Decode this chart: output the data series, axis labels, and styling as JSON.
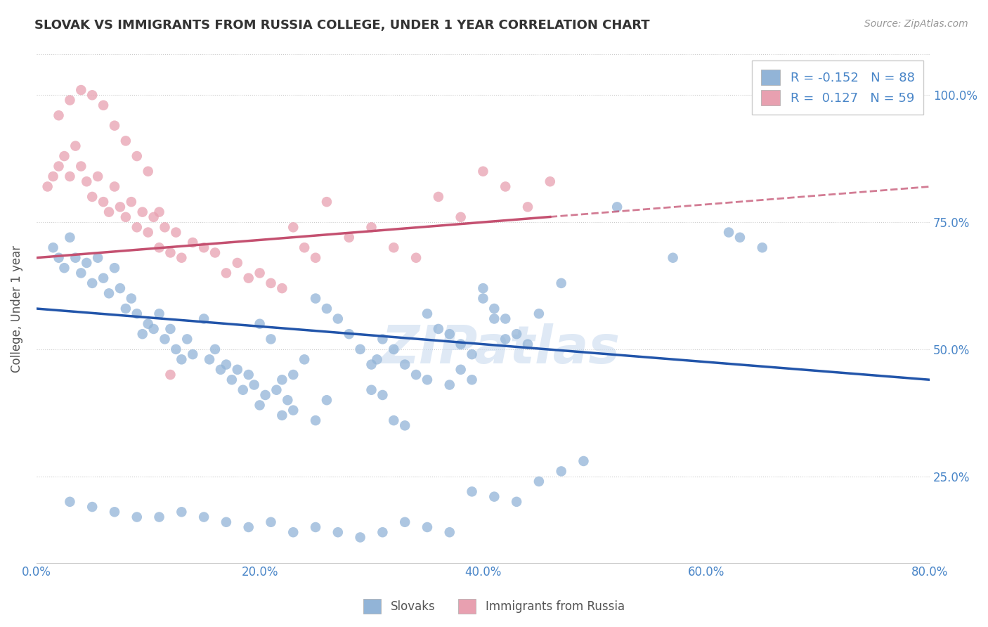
{
  "title": "SLOVAK VS IMMIGRANTS FROM RUSSIA COLLEGE, UNDER 1 YEAR CORRELATION CHART",
  "source_text": "Source: ZipAtlas.com",
  "ylabel": "College, Under 1 year",
  "x_tick_labels": [
    "0.0%",
    "20.0%",
    "40.0%",
    "60.0%",
    "80.0%"
  ],
  "x_tick_vals": [
    0.0,
    20.0,
    40.0,
    60.0,
    80.0
  ],
  "y_tick_labels": [
    "25.0%",
    "50.0%",
    "75.0%",
    "100.0%"
  ],
  "y_tick_vals": [
    25.0,
    50.0,
    75.0,
    100.0
  ],
  "xlim": [
    0.0,
    80.0
  ],
  "ylim": [
    8.0,
    108.0
  ],
  "legend_label1": "Slovaks",
  "legend_label2": "Immigrants from Russia",
  "r1": -0.152,
  "n1": 88,
  "r2": 0.127,
  "n2": 59,
  "color_blue": "#92b4d7",
  "color_pink": "#e8a0b0",
  "color_blue_line": "#2255aa",
  "color_pink_line": "#c45070",
  "watermark": "ZIPatlas",
  "blue_line_x0": 0.0,
  "blue_line_y0": 58.0,
  "blue_line_x1": 80.0,
  "blue_line_y1": 44.0,
  "pink_line_x0": 0.0,
  "pink_line_y0": 68.0,
  "pink_line_x1": 80.0,
  "pink_line_y1": 82.0,
  "pink_solid_xmax": 46.0,
  "blue_scatter_x": [
    1.5,
    2.0,
    2.5,
    3.0,
    3.5,
    4.0,
    4.5,
    5.0,
    5.5,
    6.0,
    6.5,
    7.0,
    7.5,
    8.0,
    8.5,
    9.0,
    9.5,
    10.0,
    10.5,
    11.0,
    11.5,
    12.0,
    12.5,
    13.0,
    13.5,
    14.0,
    15.0,
    15.5,
    16.0,
    16.5,
    17.0,
    17.5,
    18.0,
    18.5,
    19.0,
    19.5,
    20.0,
    20.5,
    21.0,
    21.5,
    22.0,
    22.5,
    23.0,
    24.0,
    25.0,
    26.0,
    27.0,
    28.0,
    29.0,
    30.0,
    30.5,
    31.0,
    32.0,
    33.0,
    34.0,
    35.0,
    36.0,
    37.0,
    38.0,
    39.0,
    40.0,
    41.0,
    42.0,
    43.0,
    44.0,
    45.0,
    47.0,
    52.0,
    57.0,
    62.0,
    63.0,
    65.0,
    37.0,
    38.0,
    39.0,
    40.0,
    41.0,
    42.0,
    20.0,
    22.0,
    23.0,
    25.0,
    26.0,
    30.0,
    31.0,
    32.0,
    33.0,
    35.0
  ],
  "blue_scatter_y": [
    70,
    68,
    66,
    72,
    68,
    65,
    67,
    63,
    68,
    64,
    61,
    66,
    62,
    58,
    60,
    57,
    53,
    55,
    54,
    57,
    52,
    54,
    50,
    48,
    52,
    49,
    56,
    48,
    50,
    46,
    47,
    44,
    46,
    42,
    45,
    43,
    55,
    41,
    52,
    42,
    44,
    40,
    45,
    48,
    60,
    58,
    56,
    53,
    50,
    47,
    48,
    52,
    50,
    47,
    45,
    57,
    54,
    53,
    51,
    49,
    62,
    58,
    56,
    53,
    51,
    57,
    63,
    78,
    68,
    73,
    72,
    70,
    43,
    46,
    44,
    60,
    56,
    52,
    39,
    37,
    38,
    36,
    40,
    42,
    41,
    36,
    35,
    44
  ],
  "blue_scatter_x2": [
    3.0,
    5.0,
    7.0,
    9.0,
    11.0,
    13.0,
    15.0,
    17.0,
    19.0,
    21.0,
    23.0,
    25.0,
    27.0,
    29.0,
    31.0,
    33.0,
    35.0,
    37.0,
    39.0,
    41.0,
    43.0,
    45.0,
    47.0,
    49.0
  ],
  "blue_scatter_y2": [
    20,
    19,
    18,
    17,
    17,
    18,
    17,
    16,
    15,
    16,
    14,
    15,
    14,
    13,
    14,
    16,
    15,
    14,
    22,
    21,
    20,
    24,
    26,
    28
  ],
  "pink_scatter_x": [
    1.0,
    1.5,
    2.0,
    2.5,
    3.0,
    3.5,
    4.0,
    4.5,
    5.0,
    5.5,
    6.0,
    6.5,
    7.0,
    7.5,
    8.0,
    8.5,
    9.0,
    9.5,
    10.0,
    10.5,
    11.0,
    11.5,
    12.0,
    12.5,
    13.0,
    14.0,
    15.0,
    16.0,
    17.0,
    18.0,
    19.0,
    20.0,
    21.0,
    22.0,
    23.0,
    24.0,
    25.0,
    26.0,
    28.0,
    30.0,
    32.0,
    34.0,
    36.0,
    38.0,
    40.0,
    42.0,
    44.0,
    46.0,
    2.0,
    3.0,
    4.0,
    5.0,
    6.0,
    7.0,
    8.0,
    9.0,
    10.0,
    11.0,
    12.0
  ],
  "pink_scatter_y": [
    82,
    84,
    86,
    88,
    84,
    90,
    86,
    83,
    80,
    84,
    79,
    77,
    82,
    78,
    76,
    79,
    74,
    77,
    73,
    76,
    70,
    74,
    69,
    73,
    68,
    71,
    70,
    69,
    65,
    67,
    64,
    65,
    63,
    62,
    74,
    70,
    68,
    79,
    72,
    74,
    70,
    68,
    80,
    76,
    85,
    82,
    78,
    83,
    96,
    99,
    101,
    100,
    98,
    94,
    91,
    88,
    85,
    77,
    45
  ]
}
